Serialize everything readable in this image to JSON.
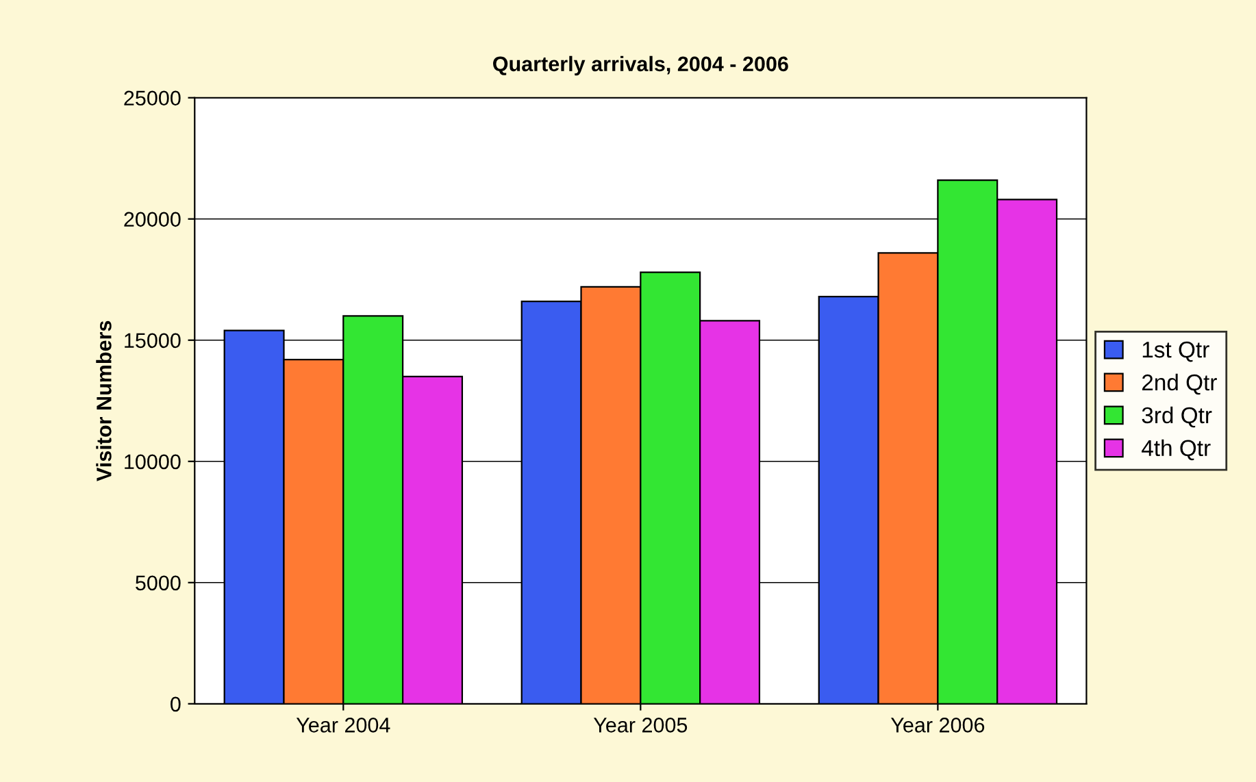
{
  "chart_data": {
    "type": "bar",
    "title": "Quarterly arrivals, 2004 - 2006",
    "ylabel": "Visitor Numbers",
    "categories": [
      "Year 2004",
      "Year 2005",
      "Year 2006"
    ],
    "series": [
      {
        "name": "1st Qtr",
        "color": "#3a5cf0",
        "values": [
          15400,
          16600,
          16800
        ]
      },
      {
        "name": "2nd Qtr",
        "color": "#ff7a33",
        "values": [
          14200,
          17200,
          18600
        ]
      },
      {
        "name": "3rd Qtr",
        "color": "#33e633",
        "values": [
          16000,
          17800,
          21600
        ]
      },
      {
        "name": "4th Qtr",
        "color": "#e633e6",
        "values": [
          13500,
          15800,
          20800
        ]
      }
    ],
    "ylim": [
      0,
      25000
    ],
    "yticks": [
      0,
      5000,
      10000,
      15000,
      20000,
      25000
    ],
    "grid": "y",
    "legend": "right"
  }
}
